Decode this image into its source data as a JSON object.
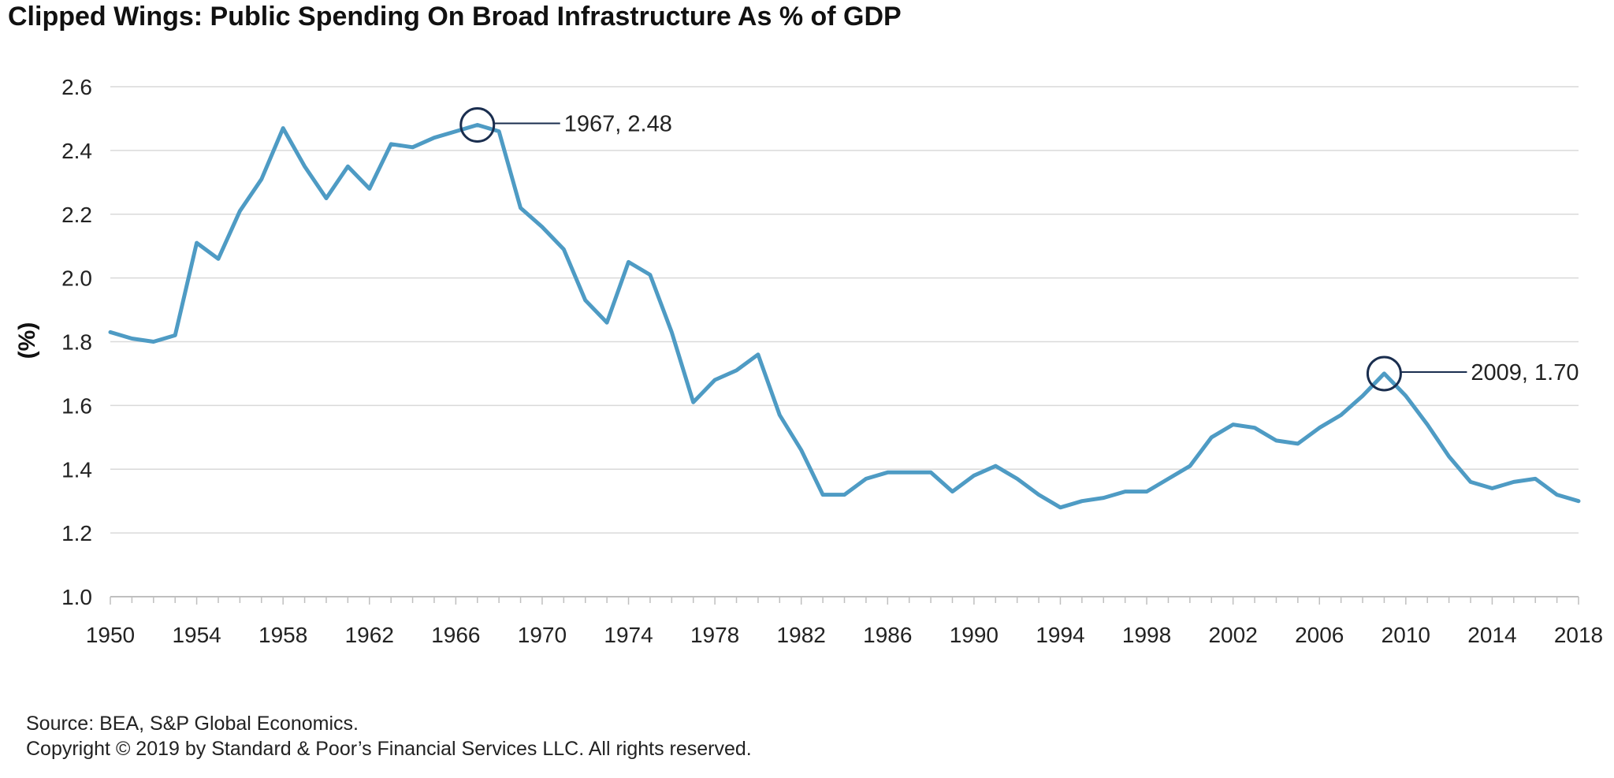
{
  "chart_data": {
    "type": "line",
    "title": "Clipped Wings: Public Spending On Broad Infrastructure As % of GDP",
    "xlabel": "",
    "ylabel": "(%)",
    "xlim": [
      1950,
      2018
    ],
    "ylim": [
      1.0,
      2.6
    ],
    "x_ticks": [
      1950,
      1954,
      1958,
      1962,
      1966,
      1970,
      1974,
      1978,
      1982,
      1986,
      1990,
      1994,
      1998,
      2002,
      2006,
      2010,
      2014,
      2018
    ],
    "y_ticks": [
      "1.0",
      "1.2",
      "1.4",
      "1.6",
      "1.8",
      "2.0",
      "2.2",
      "2.4",
      "2.6"
    ],
    "grid": "horizontal",
    "legend": "none",
    "series": [
      {
        "color": "#4e9bc4",
        "x": [
          1950,
          1951,
          1952,
          1953,
          1954,
          1955,
          1956,
          1957,
          1958,
          1959,
          1960,
          1961,
          1962,
          1963,
          1964,
          1965,
          1966,
          1967,
          1968,
          1969,
          1970,
          1971,
          1972,
          1973,
          1974,
          1975,
          1976,
          1977,
          1978,
          1979,
          1980,
          1981,
          1982,
          1983,
          1984,
          1985,
          1986,
          1987,
          1988,
          1989,
          1990,
          1991,
          1992,
          1993,
          1994,
          1995,
          1996,
          1997,
          1998,
          1999,
          2000,
          2001,
          2002,
          2003,
          2004,
          2005,
          2006,
          2007,
          2008,
          2009,
          2010,
          2011,
          2012,
          2013,
          2014,
          2015,
          2016,
          2017,
          2018
        ],
        "values": [
          1.83,
          1.81,
          1.8,
          1.82,
          2.11,
          2.06,
          2.21,
          2.31,
          2.47,
          2.35,
          2.25,
          2.35,
          2.28,
          2.42,
          2.41,
          2.44,
          2.46,
          2.48,
          2.46,
          2.22,
          2.16,
          2.09,
          1.93,
          1.86,
          2.05,
          2.01,
          1.83,
          1.61,
          1.68,
          1.71,
          1.76,
          1.57,
          1.46,
          1.32,
          1.32,
          1.37,
          1.39,
          1.39,
          1.39,
          1.33,
          1.38,
          1.41,
          1.37,
          1.32,
          1.28,
          1.3,
          1.31,
          1.33,
          1.33,
          1.37,
          1.41,
          1.5,
          1.54,
          1.53,
          1.49,
          1.48,
          1.53,
          1.57,
          1.63,
          1.7,
          1.63,
          1.54,
          1.44,
          1.36,
          1.34,
          1.36,
          1.37,
          1.32,
          1.3
        ]
      }
    ],
    "annotations": [
      {
        "x": 1967,
        "y": 2.48,
        "label": "1967, 2.48"
      },
      {
        "x": 2009,
        "y": 1.7,
        "label": "2009, 1.70"
      }
    ],
    "colors": {
      "line": "#4e9bc4",
      "marker": "#1a2e4f",
      "grid": "#d9d9d9",
      "axis": "#bfbfbf"
    }
  },
  "footer": {
    "source": "Source: BEA, S&P Global Economics.",
    "copyright": "Copyright © 2019 by Standard & Poor’s Financial Services LLC. All rights reserved."
  }
}
